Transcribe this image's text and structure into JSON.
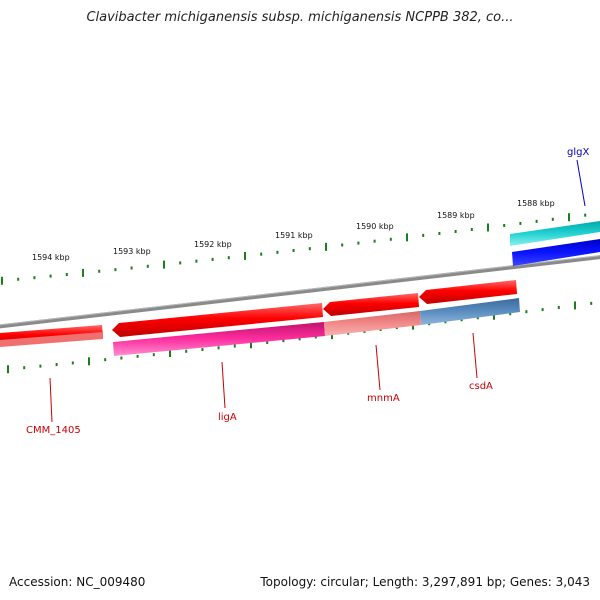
{
  "title": "Clavibacter michiganensis subsp. michiganensis NCPPB 382, co...",
  "footer": {
    "accession": "Accession: NC_009480",
    "summary": "Topology: circular; Length: 3,297,891 bp; Genes: 3,043"
  },
  "colors": {
    "backbone": "#7a7a7a",
    "tick": "#1a7f1a",
    "gene_red": "#ff0000",
    "label_red": "#cc0000",
    "label_blue": "#0000aa"
  },
  "scale_labels": [
    "1594 kbp",
    "1593 kbp",
    "1592 kbp",
    "1591 kbp",
    "1590 kbp",
    "1589 kbp",
    "1588 kbp"
  ],
  "genes": [
    {
      "name": "CMM_1405",
      "color": "#cc0000"
    },
    {
      "name": "ligA",
      "color": "#cc0000"
    },
    {
      "name": "mnmA",
      "color": "#cc0000"
    },
    {
      "name": "csdA",
      "color": "#cc0000"
    },
    {
      "name": "glgX",
      "color": "#0000aa"
    }
  ]
}
